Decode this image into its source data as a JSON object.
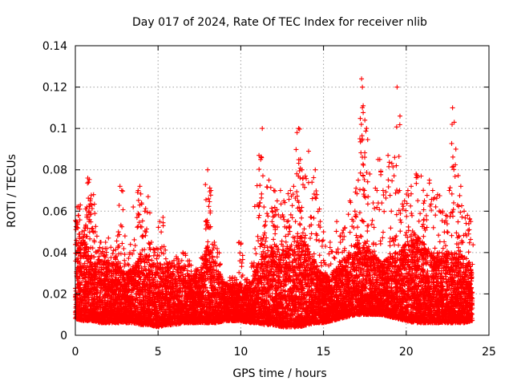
{
  "chart_data": {
    "type": "scatter",
    "title": "Day 017 of 2024, Rate Of TEC Index for receiver nlib",
    "xlabel": "GPS time / hours",
    "ylabel": "ROTI / TECUs",
    "xlim": [
      0,
      25
    ],
    "ylim": [
      0,
      0.14
    ],
    "xticks": [
      0,
      5,
      10,
      15,
      20,
      25
    ],
    "yticks": [
      0,
      0.02,
      0.04,
      0.06,
      0.08,
      0.1,
      0.12,
      0.14
    ],
    "xtick_labels": [
      "0",
      "5",
      "10",
      "15",
      "20",
      "25"
    ],
    "ytick_labels": [
      "0",
      "0.02",
      "0.04",
      "0.06",
      "0.08",
      "0.1",
      "0.12",
      "0.14"
    ],
    "grid": true,
    "marker": "plus",
    "color": "#ff0000",
    "series": [
      {
        "points": [
          [
            0.05,
            0.055
          ],
          [
            0.1,
            0.062
          ],
          [
            0.2,
            0.058
          ],
          [
            0.3,
            0.063
          ],
          [
            0.4,
            0.05
          ],
          [
            0.5,
            0.045
          ],
          [
            0.6,
            0.052
          ],
          [
            0.7,
            0.062
          ],
          [
            0.75,
            0.076
          ],
          [
            0.8,
            0.074
          ],
          [
            0.9,
            0.065
          ],
          [
            1.0,
            0.063
          ],
          [
            1.1,
            0.068
          ],
          [
            1.2,
            0.05
          ],
          [
            1.5,
            0.045
          ],
          [
            1.8,
            0.042
          ],
          [
            2.0,
            0.047
          ],
          [
            2.3,
            0.041
          ],
          [
            2.6,
            0.05
          ],
          [
            2.7,
            0.072
          ],
          [
            2.8,
            0.07
          ],
          [
            3.0,
            0.048
          ],
          [
            3.3,
            0.04
          ],
          [
            3.5,
            0.062
          ],
          [
            3.8,
            0.07
          ],
          [
            3.9,
            0.072
          ],
          [
            4.0,
            0.064
          ],
          [
            4.2,
            0.06
          ],
          [
            4.4,
            0.067
          ],
          [
            4.6,
            0.045
          ],
          [
            4.9,
            0.042
          ],
          [
            5.1,
            0.055
          ],
          [
            5.3,
            0.057
          ],
          [
            5.7,
            0.035
          ],
          [
            6.1,
            0.038
          ],
          [
            6.5,
            0.04
          ],
          [
            6.9,
            0.036
          ],
          [
            7.3,
            0.032
          ],
          [
            7.7,
            0.038
          ],
          [
            7.9,
            0.055
          ],
          [
            8.0,
            0.08
          ],
          [
            8.05,
            0.066
          ],
          [
            8.2,
            0.07
          ],
          [
            8.4,
            0.045
          ],
          [
            8.6,
            0.04
          ],
          [
            9.0,
            0.025
          ],
          [
            9.5,
            0.028
          ],
          [
            9.9,
            0.045
          ],
          [
            10.0,
            0.044
          ],
          [
            10.4,
            0.027
          ],
          [
            10.8,
            0.035
          ],
          [
            11.0,
            0.063
          ],
          [
            11.1,
            0.087
          ],
          [
            11.2,
            0.085
          ],
          [
            11.3,
            0.1
          ],
          [
            11.4,
            0.062
          ],
          [
            11.5,
            0.055
          ],
          [
            11.7,
            0.075
          ],
          [
            11.9,
            0.06
          ],
          [
            12.0,
            0.07
          ],
          [
            12.2,
            0.065
          ],
          [
            12.4,
            0.07
          ],
          [
            12.6,
            0.065
          ],
          [
            12.8,
            0.055
          ],
          [
            13.0,
            0.07
          ],
          [
            13.2,
            0.072
          ],
          [
            13.4,
            0.098
          ],
          [
            13.5,
            0.1
          ],
          [
            13.6,
            0.085
          ],
          [
            13.7,
            0.08
          ],
          [
            13.9,
            0.077
          ],
          [
            14.1,
            0.089
          ],
          [
            14.3,
            0.074
          ],
          [
            14.5,
            0.08
          ],
          [
            14.6,
            0.068
          ],
          [
            14.8,
            0.055
          ],
          [
            15.0,
            0.05
          ],
          [
            15.4,
            0.045
          ],
          [
            15.8,
            0.055
          ],
          [
            16.0,
            0.048
          ],
          [
            16.3,
            0.052
          ],
          [
            16.6,
            0.065
          ],
          [
            16.9,
            0.06
          ],
          [
            17.1,
            0.075
          ],
          [
            17.2,
            0.095
          ],
          [
            17.3,
            0.124
          ],
          [
            17.35,
            0.12
          ],
          [
            17.4,
            0.111
          ],
          [
            17.5,
            0.104
          ],
          [
            17.6,
            0.1
          ],
          [
            17.8,
            0.078
          ],
          [
            18.0,
            0.064
          ],
          [
            18.3,
            0.085
          ],
          [
            18.4,
            0.085
          ],
          [
            18.6,
            0.07
          ],
          [
            18.9,
            0.087
          ],
          [
            19.1,
            0.06
          ],
          [
            19.3,
            0.086
          ],
          [
            19.4,
            0.082
          ],
          [
            19.45,
            0.12
          ],
          [
            19.6,
            0.07
          ],
          [
            19.9,
            0.065
          ],
          [
            20.1,
            0.07
          ],
          [
            20.3,
            0.072
          ],
          [
            20.6,
            0.078
          ],
          [
            20.9,
            0.077
          ],
          [
            21.1,
            0.065
          ],
          [
            21.4,
            0.075
          ],
          [
            21.6,
            0.07
          ],
          [
            21.9,
            0.068
          ],
          [
            22.2,
            0.06
          ],
          [
            22.4,
            0.058
          ],
          [
            22.6,
            0.07
          ],
          [
            22.8,
            0.11
          ],
          [
            22.9,
            0.103
          ],
          [
            23.0,
            0.09
          ],
          [
            23.1,
            0.063
          ],
          [
            23.3,
            0.072
          ],
          [
            23.5,
            0.06
          ],
          [
            23.7,
            0.058
          ],
          [
            23.9,
            0.055
          ]
        ],
        "bulk_profile": {
          "x": [
            0,
            0.5,
            1,
            1.5,
            2,
            2.5,
            3,
            3.5,
            4,
            4.5,
            5,
            5.5,
            6,
            6.5,
            7,
            7.5,
            8,
            8.5,
            9,
            9.5,
            10,
            10.5,
            11,
            11.5,
            12,
            12.5,
            13,
            13.5,
            14,
            14.5,
            15,
            15.5,
            16,
            16.5,
            17,
            17.5,
            18,
            18.5,
            19,
            19.5,
            20,
            20.5,
            21,
            21.5,
            22,
            22.5,
            23,
            23.5,
            24
          ],
          "low": [
            0.008,
            0.007,
            0.007,
            0.006,
            0.006,
            0.006,
            0.006,
            0.006,
            0.005,
            0.005,
            0.004,
            0.005,
            0.005,
            0.006,
            0.006,
            0.006,
            0.006,
            0.006,
            0.007,
            0.007,
            0.007,
            0.006,
            0.006,
            0.005,
            0.005,
            0.004,
            0.004,
            0.004,
            0.005,
            0.006,
            0.006,
            0.007,
            0.008,
            0.009,
            0.01,
            0.01,
            0.01,
            0.01,
            0.009,
            0.008,
            0.007,
            0.006,
            0.006,
            0.006,
            0.006,
            0.006,
            0.006,
            0.006,
            0.007
          ],
          "high": [
            0.04,
            0.045,
            0.04,
            0.038,
            0.035,
            0.035,
            0.03,
            0.032,
            0.04,
            0.038,
            0.035,
            0.035,
            0.034,
            0.033,
            0.03,
            0.03,
            0.045,
            0.035,
            0.025,
            0.025,
            0.025,
            0.025,
            0.035,
            0.04,
            0.045,
            0.04,
            0.045,
            0.05,
            0.045,
            0.035,
            0.03,
            0.03,
            0.035,
            0.04,
            0.045,
            0.045,
            0.04,
            0.035,
            0.04,
            0.04,
            0.045,
            0.05,
            0.045,
            0.04,
            0.04,
            0.04,
            0.04,
            0.038,
            0.035
          ],
          "density": 42
        }
      }
    ]
  }
}
